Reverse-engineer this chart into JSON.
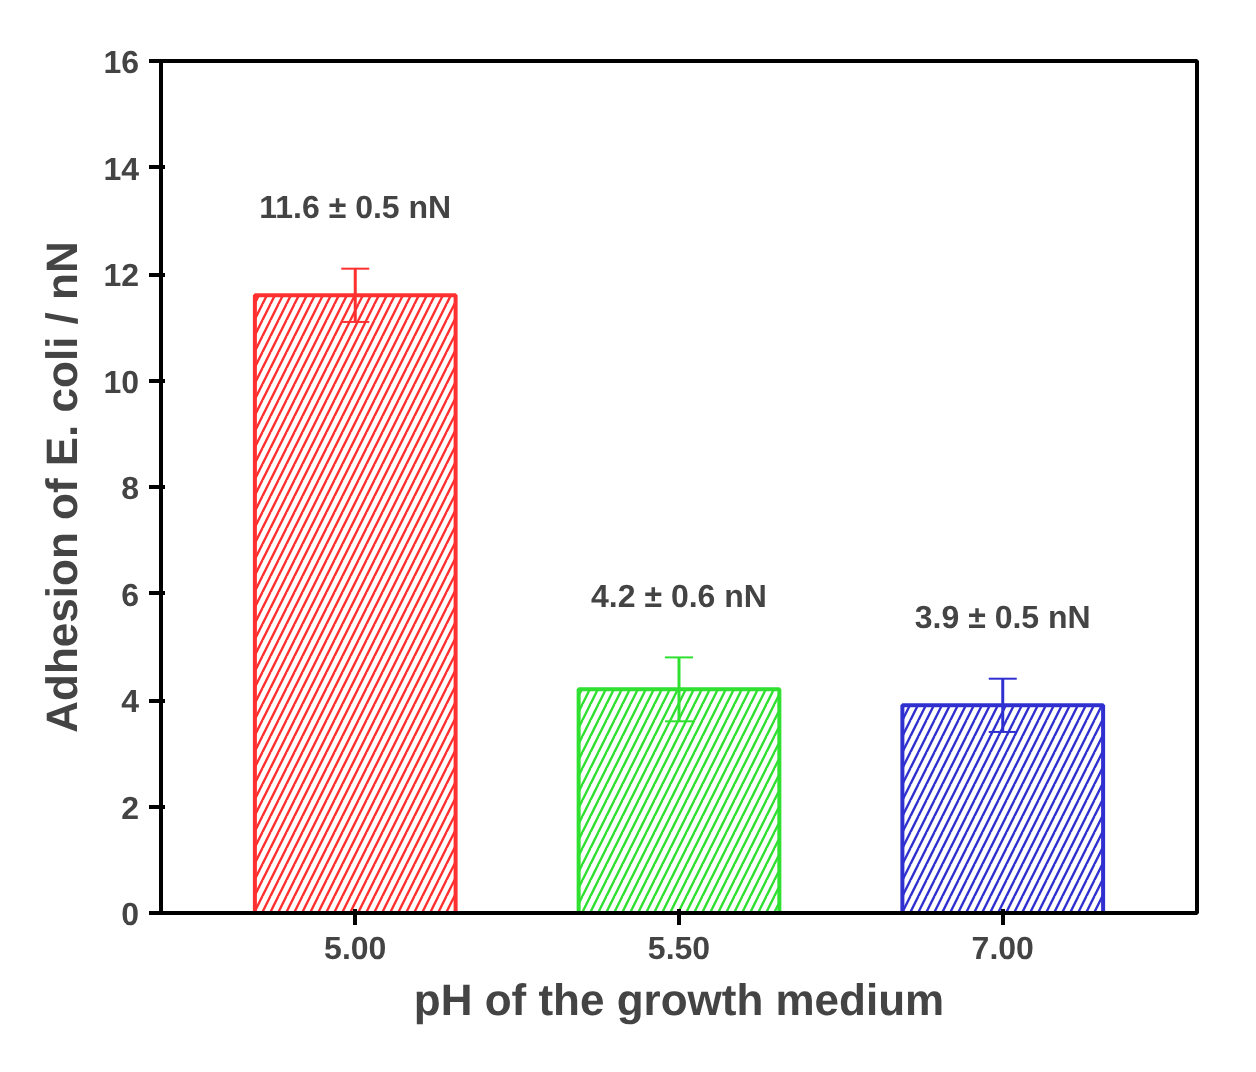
{
  "chart_data": {
    "type": "bar",
    "xlabel": "pH of the growth medium",
    "ylabel": "Adhesion of E. coli / nN",
    "categories": [
      "5.00",
      "5.50",
      "7.00"
    ],
    "values": [
      11.6,
      4.2,
      3.9
    ],
    "errors": [
      0.5,
      0.6,
      0.5
    ],
    "colors": [
      "#ff3030",
      "#30e030",
      "#3030d0"
    ],
    "value_labels": [
      "11.6 ± 0.5 nN",
      "4.2 ± 0.6 nN",
      "3.9 ± 0.5 nN"
    ],
    "ylim": [
      0,
      16
    ],
    "yticks": [
      0,
      2,
      4,
      6,
      8,
      10,
      12,
      14,
      16
    ],
    "grid": false
  }
}
